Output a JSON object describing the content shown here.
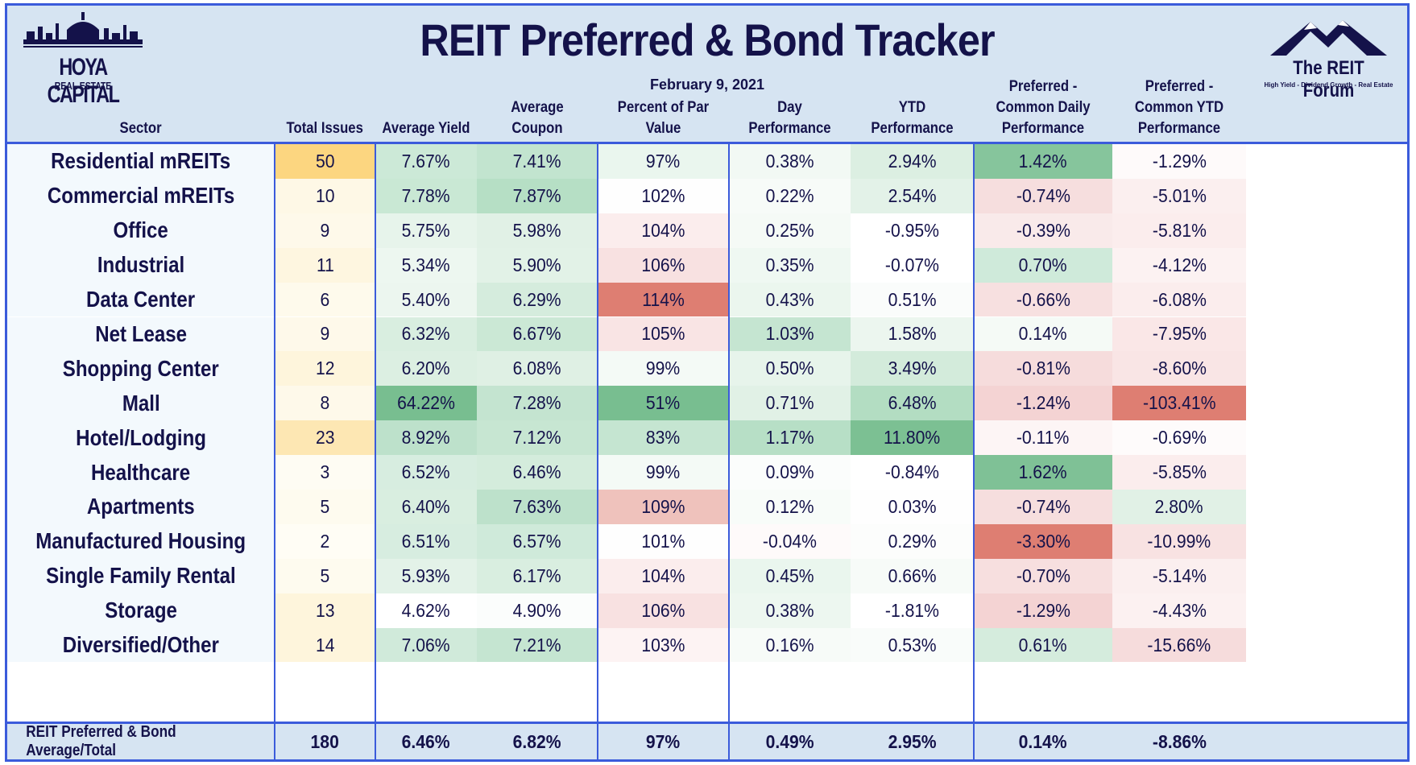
{
  "title": "REIT Preferred & Bond Tracker",
  "date": "February 9, 2021",
  "logos": {
    "left": {
      "brand": "HOYA CAPITAL",
      "sub": "REAL ESTATE"
    },
    "right": {
      "brand": "The REIT Forum",
      "sub": "High Yield - Dividend Growth - Real Estate"
    }
  },
  "columns": [
    {
      "key": "sector",
      "label": "Sector"
    },
    {
      "key": "issues",
      "label": "Total Issues"
    },
    {
      "key": "yield",
      "label": "Average Yield"
    },
    {
      "key": "coupon",
      "label": "Average Coupon"
    },
    {
      "key": "par",
      "label": "Percent of Par Value"
    },
    {
      "key": "day",
      "label": "Day Performance"
    },
    {
      "key": "ytd",
      "label": "YTD Performance"
    },
    {
      "key": "pc_day",
      "label": "Preferred - Common Daily Performance"
    },
    {
      "key": "pc_ytd",
      "label": "Preferred - Common YTD Performance"
    }
  ],
  "rows": [
    {
      "sector": "Residential mREITs",
      "issues": "50",
      "yield": "7.67%",
      "coupon": "7.41%",
      "par": "97%",
      "day": "0.38%",
      "ytd": "2.94%",
      "pc_day": "1.42%",
      "pc_ytd": "-1.29%",
      "colors": [
        "#fcd680",
        "#cce9d7",
        "#c2e4cf",
        "#eaf6ee",
        "#f2f9f4",
        "#dcefe2",
        "#86c59c",
        "#fefafa"
      ]
    },
    {
      "sector": "Commercial mREITs",
      "issues": "10",
      "yield": "7.78%",
      "coupon": "7.87%",
      "par": "102%",
      "day": "0.22%",
      "ytd": "2.54%",
      "pc_day": "-0.74%",
      "pc_ytd": "-5.01%",
      "colors": [
        "#fef8e6",
        "#c9e8d4",
        "#b6dfc5",
        "#fefefe",
        "#f7fbf8",
        "#e3f2e8",
        "#f6dede",
        "#fbefef"
      ]
    },
    {
      "sector": "Office",
      "issues": "9",
      "yield": "5.75%",
      "coupon": "5.98%",
      "par": "104%",
      "day": "0.25%",
      "ytd": "-0.95%",
      "pc_day": "-0.39%",
      "pc_ytd": "-5.81%",
      "colors": [
        "#fef9ea",
        "#e7f4eb",
        "#e1f1e6",
        "#fbeded",
        "#f5faf6",
        "#ffffff",
        "#f9eaea",
        "#fbeded"
      ]
    },
    {
      "sector": "Industrial",
      "issues": "11",
      "yield": "5.34%",
      "coupon": "5.90%",
      "par": "106%",
      "day": "0.35%",
      "ytd": "-0.07%",
      "pc_day": "0.70%",
      "pc_ytd": "-4.12%",
      "colors": [
        "#fef6e0",
        "#edf7f0",
        "#e2f2e7",
        "#f8e1e1",
        "#eff8f2",
        "#ffffff",
        "#cfeada",
        "#fcf2f2"
      ]
    },
    {
      "sector": "Data Center",
      "issues": "6",
      "yield": "5.40%",
      "coupon": "6.29%",
      "par": "114%",
      "day": "0.43%",
      "ytd": "0.51%",
      "pc_day": "-0.66%",
      "pc_ytd": "-6.08%",
      "colors": [
        "#fefaec",
        "#ecf6ef",
        "#d5ecdd",
        "#de7e72",
        "#ebf6ee",
        "#fafcfb",
        "#f7e0e0",
        "#fbeded"
      ]
    },
    {
      "sector": "Net Lease",
      "issues": "9",
      "yield": "6.32%",
      "coupon": "6.67%",
      "par": "105%",
      "day": "1.03%",
      "ytd": "1.58%",
      "pc_day": "0.14%",
      "pc_ytd": "-7.95%",
      "colors": [
        "#fef9ea",
        "#d9eee0",
        "#cbe8d5",
        "#f9e4e4",
        "#c5e5d1",
        "#ecf6ef",
        "#f5faf6",
        "#fae7e7"
      ]
    },
    {
      "sector": "Shopping Center",
      "issues": "12",
      "yield": "6.20%",
      "coupon": "6.08%",
      "par": "99%",
      "day": "0.50%",
      "ytd": "3.49%",
      "pc_day": "-0.81%",
      "pc_ytd": "-8.60%",
      "colors": [
        "#fef5dc",
        "#dcefe2",
        "#dff0e4",
        "#f4faf6",
        "#e7f4eb",
        "#d3ebdb",
        "#f6dcdc",
        "#f9e5e5"
      ]
    },
    {
      "sector": "Mall",
      "issues": "8",
      "yield": "64.22%",
      "coupon": "7.28%",
      "par": "51%",
      "day": "0.71%",
      "ytd": "6.48%",
      "pc_day": "-1.24%",
      "pc_ytd": "-103.41%",
      "colors": [
        "#fef9ea",
        "#78be90",
        "#c4e4d0",
        "#78be90",
        "#e1f1e6",
        "#b3ddc2",
        "#f4d3d3",
        "#de7e72"
      ]
    },
    {
      "sector": "Hotel/Lodging",
      "issues": "23",
      "yield": "8.92%",
      "coupon": "7.12%",
      "par": "83%",
      "day": "1.17%",
      "ytd": "11.80%",
      "pc_day": "-0.11%",
      "pc_ytd": "-0.69%",
      "colors": [
        "#fde7b3",
        "#bde1cb",
        "#c7e6d2",
        "#c5e5d1",
        "#b7dfc6",
        "#7cc093",
        "#fdf5f5",
        "#fefbfb"
      ]
    },
    {
      "sector": "Healthcare",
      "issues": "3",
      "yield": "6.52%",
      "coupon": "6.46%",
      "par": "99%",
      "day": "0.09%",
      "ytd": "-0.84%",
      "pc_day": "1.62%",
      "pc_ytd": "-5.85%",
      "colors": [
        "#fefcf3",
        "#d7ede0",
        "#d4ecdc",
        "#f4faf6",
        "#fbfdfc",
        "#ffffff",
        "#7fc196",
        "#fbeded"
      ]
    },
    {
      "sector": "Apartments",
      "issues": "5",
      "yield": "6.40%",
      "coupon": "7.63%",
      "par": "109%",
      "day": "0.12%",
      "ytd": "0.03%",
      "pc_day": "-0.74%",
      "pc_ytd": "2.80%",
      "colors": [
        "#fefbef",
        "#d9eee0",
        "#bde1cb",
        "#efc2bc",
        "#f8fcf9",
        "#fefefe",
        "#f6dede",
        "#e1f1e6"
      ]
    },
    {
      "sector": "Manufactured Housing",
      "issues": "2",
      "yield": "6.51%",
      "coupon": "6.57%",
      "par": "101%",
      "day": "-0.04%",
      "ytd": "0.29%",
      "pc_day": "-3.30%",
      "pc_ytd": "-10.99%",
      "colors": [
        "#fffdf5",
        "#d7ede0",
        "#cfeada",
        "#fefefe",
        "#fefafa",
        "#fcfdfc",
        "#de7e72",
        "#f8e2e2"
      ]
    },
    {
      "sector": "Single Family Rental",
      "issues": "5",
      "yield": "5.93%",
      "coupon": "6.17%",
      "par": "104%",
      "day": "0.45%",
      "ytd": "0.66%",
      "pc_day": "-0.70%",
      "pc_ytd": "-5.14%",
      "colors": [
        "#fefbef",
        "#e3f2e8",
        "#d9eee0",
        "#fbeded",
        "#eaf6ee",
        "#f7fbf8",
        "#f7dfdf",
        "#fbefef"
      ]
    },
    {
      "sector": "Storage",
      "issues": "13",
      "yield": "4.62%",
      "coupon": "4.90%",
      "par": "106%",
      "day": "0.38%",
      "ytd": "-1.81%",
      "pc_day": "-1.29%",
      "pc_ytd": "-4.43%",
      "colors": [
        "#fef5dc",
        "#ffffff",
        "#fbfdfc",
        "#f8e1e1",
        "#edf7f0",
        "#ffffff",
        "#f4d3d3",
        "#fcf1f1"
      ]
    },
    {
      "sector": "Diversified/Other",
      "issues": "14",
      "yield": "7.06%",
      "coupon": "7.21%",
      "par": "103%",
      "day": "0.16%",
      "ytd": "0.53%",
      "pc_day": "0.61%",
      "pc_ytd": "-15.66%",
      "colors": [
        "#fef5dc",
        "#d0eada",
        "#c5e5d1",
        "#fdf3f3",
        "#f7fbf8",
        "#f9fcfa",
        "#d5ecdd",
        "#f6dcdc"
      ]
    }
  ],
  "total": {
    "sector": "REIT Preferred & Bond Average/Total",
    "issues": "180",
    "yield": "6.46%",
    "coupon": "6.82%",
    "par": "97%",
    "day": "0.49%",
    "ytd": "2.95%",
    "pc_day": "0.14%",
    "pc_ytd": "-8.86%"
  },
  "colors": {
    "border": "#3b5bdb",
    "header_bg": "#d6e4f2",
    "text": "#14124a",
    "sector_bg": "#f3f9fd"
  }
}
